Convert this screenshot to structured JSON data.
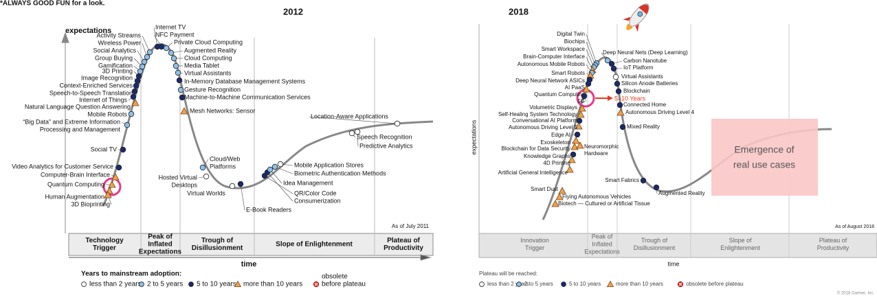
{
  "header_note": "*ALWAYS GOOD FUN for a look.",
  "left": {
    "title": "2012",
    "y_label": "expectations",
    "x_label": "time",
    "as_of": "As of July 2011",
    "phases": [
      [
        "Technology",
        "Trigger"
      ],
      [
        "Peak of",
        "Inflated",
        "Expectations"
      ],
      [
        "Trough of",
        "Disillusionment"
      ],
      [
        "Slope of Enlightenment"
      ],
      [
        "Plateau of",
        "Productivity"
      ]
    ],
    "legend_title": "Years to mainstream adoption:",
    "legend": [
      {
        "label": [
          "less than 2 years"
        ],
        "marker": "white"
      },
      {
        "label": [
          "2 to 5 years"
        ],
        "marker": "light"
      },
      {
        "label": [
          "5 to 10 years"
        ],
        "marker": "dark"
      },
      {
        "label": [
          "more than 10 years"
        ],
        "marker": "triangle"
      },
      {
        "label": [
          "obsolete",
          "before plateau"
        ],
        "marker": "obsolete"
      }
    ],
    "items": [
      {
        "label": [
          "Activity Streams"
        ],
        "marker": "light"
      },
      {
        "label": [
          "Wireless Power"
        ],
        "marker": "light"
      },
      {
        "label": [
          "Social Analytics"
        ],
        "marker": "light"
      },
      {
        "label": [
          "Group Buying"
        ],
        "marker": "light"
      },
      {
        "label": [
          "Gamification"
        ],
        "marker": "light"
      },
      {
        "label": [
          "3D Printing"
        ],
        "marker": "dark"
      },
      {
        "label": [
          "Image Recognition"
        ],
        "marker": "dark"
      },
      {
        "label": [
          "Context-Enriched Services"
        ],
        "marker": "dark"
      },
      {
        "label": [
          "Speech-to-Speech Translation"
        ],
        "marker": "dark"
      },
      {
        "label": [
          "Internet of Things"
        ],
        "marker": "dark"
      },
      {
        "label": [
          "Natural Language Question Answering"
        ],
        "marker": "triangle"
      },
      {
        "label": [
          "Mobile Robots"
        ],
        "marker": "light"
      },
      {
        "label": [
          "“Big Data” and Extreme Information",
          "Processing and Management"
        ],
        "marker": "light"
      },
      {
        "label": [
          "Social TV"
        ],
        "marker": "dark"
      },
      {
        "label": [
          "Video Analytics for Customer Service"
        ],
        "marker": "dark"
      },
      {
        "label": [
          "Computer-Brain Interface"
        ],
        "marker": "triangle"
      },
      {
        "label": [
          "Quantum Computing"
        ],
        "marker": "triangle"
      },
      {
        "label": [
          "Human Augmentation"
        ],
        "marker": "triangle"
      },
      {
        "label": [
          "3D Bioprinting"
        ],
        "marker": "triangle"
      },
      {
        "label": [
          "Internet TV"
        ],
        "marker": "dark"
      },
      {
        "label": [
          "NFC Payment"
        ],
        "marker": "dark"
      },
      {
        "label": [
          "Private Cloud Computing"
        ],
        "marker": "light"
      },
      {
        "label": [
          "Augmented Reality"
        ],
        "marker": "light"
      },
      {
        "label": [
          "Cloud Computing"
        ],
        "marker": "light"
      },
      {
        "label": [
          "Media Tablet"
        ],
        "marker": "light"
      },
      {
        "label": [
          "Virtual Assistants"
        ],
        "marker": "light"
      },
      {
        "label": [
          "In-Memory Database Management Systems"
        ],
        "marker": "dark"
      },
      {
        "label": [
          "Gesture Recognition"
        ],
        "marker": "light"
      },
      {
        "label": [
          "Machine-to-Machine Communication Services"
        ],
        "marker": "dark"
      },
      {
        "label": [
          "Mesh Networks: Sensor"
        ],
        "marker": "triangle"
      },
      {
        "label": [
          "Cloud/Web",
          "Platforms"
        ],
        "marker": "light"
      },
      {
        "label": [
          "Hosted Virtual",
          "Desktops"
        ],
        "marker": "white"
      },
      {
        "label": [
          "Virtual Worlds"
        ],
        "marker": "white"
      },
      {
        "label": [
          "E-Book Readers"
        ],
        "marker": "dark"
      },
      {
        "label": [
          "QR/Color Code"
        ],
        "marker": "dark"
      },
      {
        "label": [
          "Consumerization"
        ],
        "marker": "dark"
      },
      {
        "label": [
          "Idea Management"
        ],
        "marker": "light"
      },
      {
        "label": [
          "Biometric Authentication Methods"
        ],
        "marker": "light"
      },
      {
        "label": [
          "Mobile Application Stores"
        ],
        "marker": "white"
      },
      {
        "label": [
          "Location-Aware Applications"
        ],
        "marker": "white"
      },
      {
        "label": [
          "Speech Recognition"
        ],
        "marker": "white"
      },
      {
        "label": [
          "Predictive Analytics"
        ],
        "marker": "white"
      }
    ]
  },
  "right": {
    "title": "2018",
    "y_label": "expectations",
    "x_label": "time",
    "as_of": "As of August 2018",
    "copyright": "© 2018 Gartner, Inc.",
    "annotation": "5–10 Years",
    "callout": [
      "Emergence of",
      "real use cases"
    ],
    "phases": [
      [
        "Innovation",
        "Trigger"
      ],
      [
        "Peak of",
        "Inflated",
        "Expectations"
      ],
      [
        "Trough of",
        "Disillusionment"
      ],
      [
        "Slope of",
        "Enlightenment"
      ],
      [
        "Plateau of",
        "Productivity"
      ]
    ],
    "legend_title": "Plateau will be reached:",
    "legend": [
      {
        "label": [
          "less than 2 years"
        ],
        "marker": "white"
      },
      {
        "label": [
          "2 to 5 years"
        ],
        "marker": "light"
      },
      {
        "label": [
          "5 to 10 years"
        ],
        "marker": "dark"
      },
      {
        "label": [
          "more than 10 years"
        ],
        "marker": "triangle"
      },
      {
        "label": [
          "obsolete before plateau"
        ],
        "marker": "obsolete"
      }
    ],
    "items": [
      {
        "label": [
          "Digital Twin"
        ],
        "marker": "light"
      },
      {
        "label": [
          "Biochips"
        ],
        "marker": "light"
      },
      {
        "label": [
          "Smart Workspace"
        ],
        "marker": "light"
      },
      {
        "label": [
          "Brain-Computer Interface"
        ],
        "marker": "triangle"
      },
      {
        "label": [
          "Autonomous Mobile Robots"
        ],
        "marker": "light"
      },
      {
        "label": [
          "Smart Robots"
        ],
        "marker": "triangle"
      },
      {
        "label": [
          "Deep Neural Network ASICs"
        ],
        "marker": "dark"
      },
      {
        "label": [
          "AI PaaS"
        ],
        "marker": "dark"
      },
      {
        "label": [
          "Quantum Computing"
        ],
        "marker": "triangle"
      },
      {
        "label": [
          "5G"
        ],
        "marker": "dark"
      },
      {
        "label": [
          "Volumetric Displays"
        ],
        "marker": "triangle"
      },
      {
        "label": [
          "Self-Healing System Technology"
        ],
        "marker": "triangle"
      },
      {
        "label": [
          "Conversational AI Platform"
        ],
        "marker": "dark"
      },
      {
        "label": [
          "Autonomous Driving Level 5"
        ],
        "marker": "triangle"
      },
      {
        "label": [
          "Edge AI"
        ],
        "marker": "dark"
      },
      {
        "label": [
          "Exoskeleton"
        ],
        "marker": "triangle"
      },
      {
        "label": [
          "Blockchain for Data Security"
        ],
        "marker": "triangle"
      },
      {
        "label": [
          "Knowledge Graphs"
        ],
        "marker": "dark"
      },
      {
        "label": [
          "4D Printing"
        ],
        "marker": "triangle"
      },
      {
        "label": [
          "Artificial General Intelligence"
        ],
        "marker": "triangle"
      },
      {
        "label": [
          "Smart Dust"
        ],
        "marker": "triangle"
      },
      {
        "label": [
          "Flying Autonomous Vehicles"
        ],
        "marker": "triangle"
      },
      {
        "label": [
          "Biotech — Cultured or Artificial Tissue"
        ],
        "marker": "triangle"
      },
      {
        "label": [
          "Neuromorphic",
          "Hardware"
        ],
        "marker": "triangle"
      },
      {
        "label": [
          "Deep Neural Nets (Deep Learning)"
        ],
        "marker": "light"
      },
      {
        "label": [
          "Carbon Nanotube"
        ],
        "marker": "dark"
      },
      {
        "label": [
          "IoT Platform"
        ],
        "marker": "dark"
      },
      {
        "label": [
          "Virtual Assistants"
        ],
        "marker": "white"
      },
      {
        "label": [
          "Silicon Anode Batteries"
        ],
        "marker": "dark"
      },
      {
        "label": [
          "Blockchain"
        ],
        "marker": "dark"
      },
      {
        "label": [
          "Connected Home"
        ],
        "marker": "dark"
      },
      {
        "label": [
          "Autonomous Driving Level 4"
        ],
        "marker": "triangle"
      },
      {
        "label": [
          "Mixed Reality"
        ],
        "marker": "dark"
      },
      {
        "label": [
          "Smart Fabrics"
        ],
        "marker": "dark"
      },
      {
        "label": [
          "Augmented Reality"
        ],
        "marker": "dark"
      }
    ]
  }
}
